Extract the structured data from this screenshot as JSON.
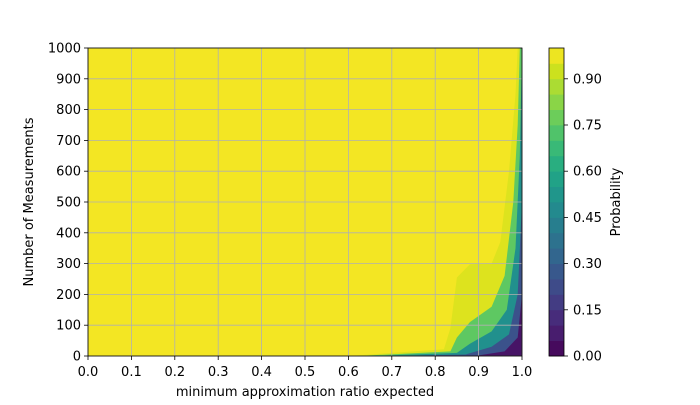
{
  "chart_data": {
    "type": "heatmap",
    "subtype": "filled-contour",
    "xlabel": "minimum approximation ratio expected",
    "ylabel": "Number of Measurements",
    "xlim": [
      0.0,
      1.0
    ],
    "ylim": [
      0,
      1000
    ],
    "x_ticks": [
      "0.0",
      "0.1",
      "0.2",
      "0.3",
      "0.4",
      "0.5",
      "0.6",
      "0.7",
      "0.8",
      "0.9",
      "1.0"
    ],
    "y_ticks": [
      "0",
      "100",
      "200",
      "300",
      "400",
      "500",
      "600",
      "700",
      "800",
      "900",
      "1000"
    ],
    "grid": true,
    "colormap": "viridis",
    "colorbar": {
      "label": "Probability",
      "range": [
        0.0,
        1.0
      ],
      "ticks": [
        "0.00",
        "0.15",
        "0.30",
        "0.45",
        "0.60",
        "0.75",
        "0.90"
      ],
      "levels": 20,
      "colors": [
        "#440154",
        "#481a6c",
        "#472f7d",
        "#414487",
        "#39568c",
        "#31688e",
        "#2a788e",
        "#23888e",
        "#1f988b",
        "#22a884",
        "#35b779",
        "#54c568",
        "#7ad151",
        "#a5db36",
        "#d2e21b",
        "#fde725"
      ]
    },
    "probability_contours": [
      {
        "level": 0.95,
        "points": [
          [
            0.0,
            0
          ],
          [
            0.6,
            0
          ],
          [
            0.82,
            22
          ],
          [
            0.835,
            90
          ],
          [
            0.85,
            255
          ],
          [
            0.88,
            298
          ],
          [
            0.93,
            300
          ],
          [
            0.95,
            370
          ],
          [
            0.97,
            600
          ],
          [
            0.985,
            850
          ],
          [
            0.99,
            1000
          ]
        ]
      },
      {
        "level": 0.75,
        "points": [
          [
            0.0,
            0
          ],
          [
            0.62,
            0
          ],
          [
            0.835,
            15
          ],
          [
            0.85,
            60
          ],
          [
            0.88,
            110
          ],
          [
            0.93,
            160
          ],
          [
            0.96,
            260
          ],
          [
            0.98,
            500
          ],
          [
            0.99,
            750
          ],
          [
            0.995,
            1000
          ]
        ]
      },
      {
        "level": 0.5,
        "points": [
          [
            0.0,
            0
          ],
          [
            0.65,
            0
          ],
          [
            0.85,
            10
          ],
          [
            0.88,
            40
          ],
          [
            0.93,
            80
          ],
          [
            0.965,
            150
          ],
          [
            0.985,
            350
          ],
          [
            0.995,
            650
          ],
          [
            1.0,
            1000
          ]
        ]
      },
      {
        "level": 0.25,
        "points": [
          [
            0.0,
            0
          ],
          [
            0.7,
            0
          ],
          [
            0.87,
            5
          ],
          [
            0.93,
            30
          ],
          [
            0.97,
            70
          ],
          [
            0.99,
            200
          ],
          [
            1.0,
            500
          ]
        ]
      },
      {
        "level": 0.05,
        "points": [
          [
            0.0,
            0
          ],
          [
            0.75,
            0
          ],
          [
            0.9,
            2
          ],
          [
            0.96,
            15
          ],
          [
            0.99,
            60
          ],
          [
            1.0,
            200
          ]
        ]
      }
    ]
  }
}
